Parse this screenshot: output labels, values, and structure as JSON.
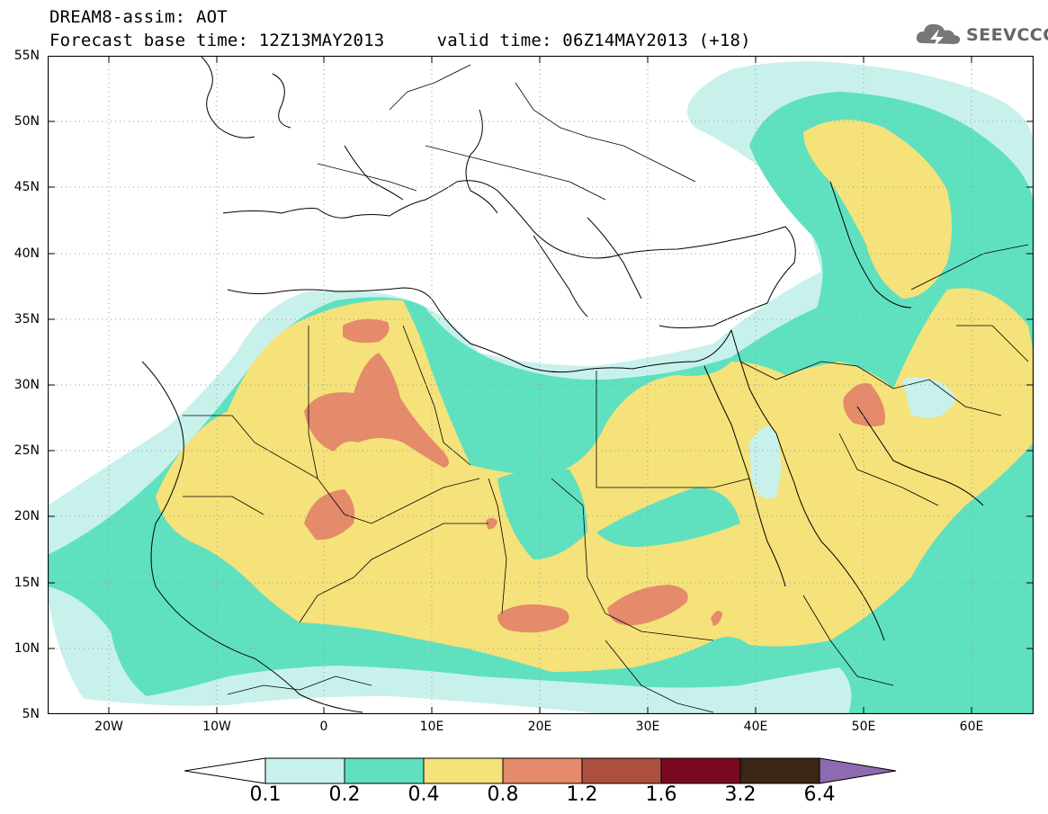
{
  "header": {
    "title_line1": "DREAM8-assim: AOT",
    "title_line2": "Forecast base time: 12Z13MAY2013     valid time: 06Z14MAY2013 (+18)",
    "logo_text": "SEEVCCC"
  },
  "map": {
    "lat_labels": [
      "55N",
      "50N",
      "45N",
      "40N",
      "35N",
      "30N",
      "25N",
      "20N",
      "15N",
      "10N",
      "5N"
    ],
    "lon_labels": [
      "20W",
      "10W",
      "0",
      "10E",
      "20E",
      "30E",
      "40E",
      "50E",
      "60E"
    ],
    "lat_range": [
      5,
      55
    ],
    "lon_range": [
      -25,
      65
    ]
  },
  "legend": {
    "levels": [
      "0.1",
      "0.2",
      "0.4",
      "0.8",
      "1.2",
      "1.6",
      "3.2",
      "6.4"
    ],
    "colors": [
      "#ffffff",
      "#c8f1ec",
      "#5fe1c0",
      "#f5e27a",
      "#e58a6a",
      "#ad4f3f",
      "#7a0a21",
      "#3a2616",
      "#8c6bb0"
    ]
  },
  "colors": {
    "land_line": "#000000",
    "class_0_1": "#c8f1ec",
    "class_0_2": "#5fe1c0",
    "class_0_4": "#f5e27a",
    "class_0_8": "#e58a6a"
  }
}
